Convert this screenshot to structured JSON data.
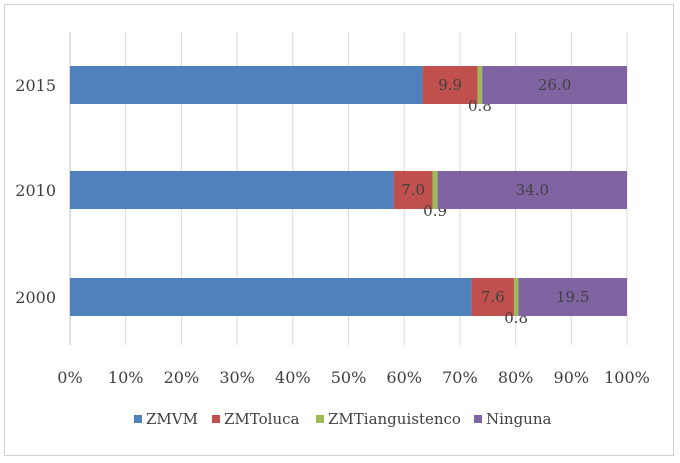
{
  "chart_data": {
    "type": "bar",
    "orientation": "horizontal",
    "stacked": "percent",
    "categories": [
      "2015",
      "2010",
      "2000"
    ],
    "series": [
      {
        "name": "ZMVM",
        "color": "#4f81bd",
        "values": [
          63.3,
          58.1,
          72.1
        ],
        "labels": [
          "",
          "",
          ""
        ]
      },
      {
        "name": "ZMToluca",
        "color": "#c0504d",
        "values": [
          9.9,
          7.0,
          7.6
        ],
        "labels": [
          "9.9",
          "7.0",
          "7.6"
        ]
      },
      {
        "name": "ZMTianguistenco",
        "color": "#9bbb59",
        "values": [
          0.8,
          0.9,
          0.8
        ],
        "labels": [
          "0.8",
          "0.9",
          "0.8"
        ]
      },
      {
        "name": "Ninguna",
        "color": "#8064a2",
        "values": [
          26.0,
          34.0,
          19.5
        ],
        "labels": [
          "26.0",
          "34.0",
          "19.5"
        ]
      }
    ],
    "x_ticks": [
      "0%",
      "10%",
      "20%",
      "30%",
      "40%",
      "50%",
      "60%",
      "70%",
      "80%",
      "90%",
      "100%"
    ],
    "xlim": [
      0,
      100
    ],
    "grid": "vertical",
    "legend": "bottom"
  }
}
